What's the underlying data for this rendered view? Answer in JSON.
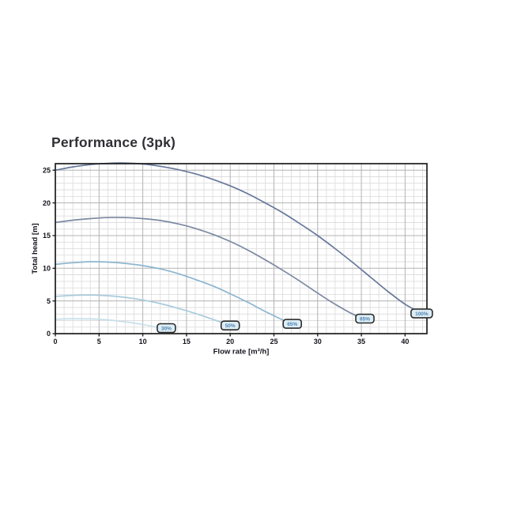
{
  "page": {
    "background": "#ffffff"
  },
  "chart_data": {
    "type": "line",
    "title": "Performance (3pk)",
    "xlabel": "Flow rate [m³/h]",
    "ylabel": "Total head [m]",
    "xlim": [
      0,
      42.5
    ],
    "ylim": [
      0,
      26
    ],
    "xticks": [
      0,
      5,
      10,
      15,
      20,
      25,
      30,
      35,
      40
    ],
    "yticks": [
      0,
      5,
      10,
      15,
      20,
      25
    ],
    "grid": {
      "on": true,
      "minor_step": 1,
      "major_step": 5,
      "minor_color": "#dadada",
      "major_color": "#b3b3b3"
    },
    "axis_color": "#1c1c1c",
    "tick_text_color": "#14141d",
    "legend_position": "inline-curve-labels",
    "label_box": {
      "fill": "#ddedf6",
      "border": "#2b2b2b",
      "text_color": "#4d83b4"
    },
    "series": [
      {
        "name": "speed-30",
        "label": "30%",
        "color": "#c8dfe9",
        "label_pos": [
          12.7,
          0.85
        ],
        "points": [
          [
            0,
            2.2
          ],
          [
            2,
            2.28
          ],
          [
            4,
            2.25
          ],
          [
            6,
            2.1
          ],
          [
            8,
            1.8
          ],
          [
            10,
            1.4
          ],
          [
            12,
            0.85
          ],
          [
            12.9,
            0.55
          ]
        ]
      },
      {
        "name": "speed-50",
        "label": "50%",
        "color": "#a9cbdd",
        "label_pos": [
          20.0,
          1.25
        ],
        "points": [
          [
            0,
            5.7
          ],
          [
            2,
            5.85
          ],
          [
            4,
            5.9
          ],
          [
            6,
            5.8
          ],
          [
            8,
            5.55
          ],
          [
            10,
            5.15
          ],
          [
            12,
            4.6
          ],
          [
            14,
            3.9
          ],
          [
            16,
            3.1
          ],
          [
            18,
            2.2
          ],
          [
            20,
            1.25
          ]
        ]
      },
      {
        "name": "speed-65",
        "label": "65%",
        "color": "#8cb6cf",
        "label_pos": [
          27.1,
          1.5
        ],
        "points": [
          [
            0,
            10.6
          ],
          [
            2,
            10.85
          ],
          [
            4,
            11.0
          ],
          [
            6,
            10.95
          ],
          [
            8,
            10.75
          ],
          [
            10,
            10.4
          ],
          [
            12,
            9.9
          ],
          [
            14,
            9.2
          ],
          [
            16,
            8.3
          ],
          [
            18,
            7.3
          ],
          [
            20,
            6.1
          ],
          [
            22,
            4.8
          ],
          [
            24,
            3.4
          ],
          [
            26,
            2.1
          ],
          [
            27.1,
            1.5
          ]
        ]
      },
      {
        "name": "speed-85",
        "label": "85%",
        "color": "#7b89a1",
        "label_pos": [
          35.4,
          2.3
        ],
        "points": [
          [
            0,
            17.0
          ],
          [
            2,
            17.35
          ],
          [
            4,
            17.6
          ],
          [
            6,
            17.75
          ],
          [
            8,
            17.75
          ],
          [
            10,
            17.6
          ],
          [
            12,
            17.3
          ],
          [
            14,
            16.8
          ],
          [
            16,
            16.1
          ],
          [
            18,
            15.2
          ],
          [
            20,
            14.1
          ],
          [
            22,
            12.8
          ],
          [
            24,
            11.3
          ],
          [
            26,
            9.7
          ],
          [
            28,
            8.0
          ],
          [
            30,
            6.2
          ],
          [
            32,
            4.5
          ],
          [
            34,
            3.0
          ],
          [
            35.4,
            2.3
          ]
        ]
      },
      {
        "name": "speed-100",
        "label": "100%",
        "color": "#66789a",
        "label_pos": [
          41.9,
          3.1
        ],
        "points": [
          [
            0,
            25.0
          ],
          [
            2,
            25.5
          ],
          [
            4,
            25.85
          ],
          [
            6,
            26.05
          ],
          [
            8,
            26.1
          ],
          [
            10,
            25.95
          ],
          [
            12,
            25.6
          ],
          [
            14,
            25.1
          ],
          [
            16,
            24.45
          ],
          [
            18,
            23.6
          ],
          [
            20,
            22.6
          ],
          [
            22,
            21.4
          ],
          [
            24,
            20.0
          ],
          [
            26,
            18.5
          ],
          [
            28,
            16.8
          ],
          [
            30,
            15.0
          ],
          [
            32,
            13.0
          ],
          [
            34,
            10.9
          ],
          [
            36,
            8.7
          ],
          [
            38,
            6.5
          ],
          [
            40,
            4.5
          ],
          [
            41.9,
            3.1
          ]
        ]
      }
    ]
  }
}
